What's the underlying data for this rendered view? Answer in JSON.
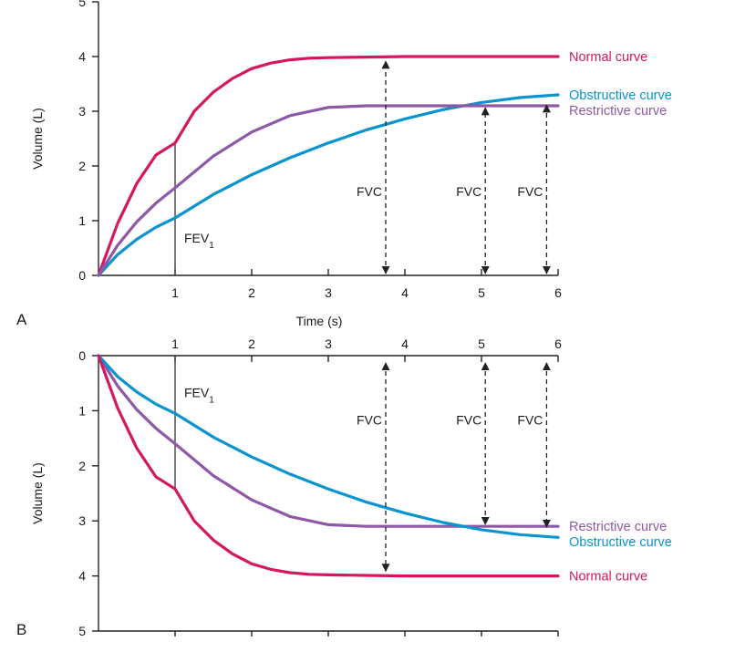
{
  "chart_data": [
    {
      "panel": "A",
      "type": "line",
      "xlabel": "Time (s)",
      "ylabel": "Volume (L)",
      "xlim": [
        0,
        6
      ],
      "ylim": [
        0,
        5
      ],
      "x_ticks": [
        "1",
        "2",
        "3",
        "4",
        "5",
        "6"
      ],
      "y_ticks": [
        "0",
        "1",
        "2",
        "3",
        "4",
        "5"
      ],
      "y_inverted": false,
      "x_axis_position": "bottom",
      "series": [
        {
          "name": "Normal curve",
          "color": "#d6175f",
          "x": [
            0,
            0.25,
            0.5,
            0.75,
            1,
            1.25,
            1.5,
            1.75,
            2,
            2.25,
            2.5,
            2.75,
            3,
            3.5,
            4,
            5,
            6
          ],
          "y": [
            0,
            0.95,
            1.68,
            2.2,
            2.42,
            3.0,
            3.35,
            3.6,
            3.78,
            3.88,
            3.94,
            3.97,
            3.98,
            3.99,
            4.0,
            4.0,
            4.0
          ]
        },
        {
          "name": "Obstructive curve",
          "color": "#0a94cf",
          "x": [
            0,
            0.25,
            0.5,
            0.75,
            1,
            1.5,
            2,
            2.5,
            3,
            3.5,
            4,
            4.5,
            5,
            5.5,
            6
          ],
          "y": [
            0,
            0.38,
            0.66,
            0.88,
            1.05,
            1.48,
            1.84,
            2.15,
            2.42,
            2.66,
            2.86,
            3.03,
            3.16,
            3.25,
            3.3
          ]
        },
        {
          "name": "Restrictive curve",
          "color": "#8e58a6",
          "x": [
            0,
            0.25,
            0.5,
            0.75,
            1,
            1.5,
            2,
            2.5,
            3,
            3.5,
            4,
            5,
            6
          ],
          "y": [
            0,
            0.55,
            0.98,
            1.32,
            1.6,
            2.18,
            2.62,
            2.92,
            3.07,
            3.1,
            3.1,
            3.1,
            3.1
          ]
        }
      ],
      "fev1": {
        "label": "FEV",
        "subscript": "1",
        "x": 1,
        "y_top": 2.42
      },
      "fvc_markers": [
        {
          "label": "FVC",
          "x": 3.75,
          "y_top": 3.98
        },
        {
          "label": "FVC",
          "x": 5.05,
          "y_top": 3.13
        },
        {
          "label": "FVC",
          "x": 5.85,
          "y_top": 3.18
        }
      ],
      "panel_letter": "A"
    },
    {
      "panel": "B",
      "type": "line",
      "xlabel": "",
      "ylabel": "Volume (L)",
      "xlim": [
        0,
        6
      ],
      "ylim": [
        0,
        5
      ],
      "x_ticks": [
        "1",
        "2",
        "3",
        "4",
        "5",
        "6"
      ],
      "y_ticks": [
        "0",
        "1",
        "2",
        "3",
        "4",
        "5"
      ],
      "y_inverted": true,
      "x_axis_position": "top",
      "series": [
        {
          "name": "Restrictive curve",
          "color": "#8e58a6",
          "x": [
            0,
            0.25,
            0.5,
            0.75,
            1,
            1.5,
            2,
            2.5,
            3,
            3.5,
            4,
            5,
            6
          ],
          "y": [
            0,
            0.55,
            0.98,
            1.32,
            1.6,
            2.18,
            2.62,
            2.92,
            3.07,
            3.1,
            3.1,
            3.1,
            3.1
          ]
        },
        {
          "name": "Obstructive curve",
          "color": "#0a94cf",
          "x": [
            0,
            0.25,
            0.5,
            0.75,
            1,
            1.5,
            2,
            2.5,
            3,
            3.5,
            4,
            4.5,
            5,
            5.5,
            6
          ],
          "y": [
            0,
            0.38,
            0.66,
            0.88,
            1.05,
            1.48,
            1.84,
            2.15,
            2.42,
            2.66,
            2.86,
            3.03,
            3.16,
            3.25,
            3.3
          ]
        },
        {
          "name": "Normal curve",
          "color": "#d6175f",
          "x": [
            0,
            0.25,
            0.5,
            0.75,
            1,
            1.25,
            1.5,
            1.75,
            2,
            2.25,
            2.5,
            2.75,
            3,
            3.5,
            4,
            5,
            6
          ],
          "y": [
            0,
            0.95,
            1.68,
            2.2,
            2.42,
            3.0,
            3.35,
            3.6,
            3.78,
            3.88,
            3.94,
            3.97,
            3.98,
            3.99,
            4.0,
            4.0,
            4.0
          ]
        }
      ],
      "fev1": {
        "label": "FEV",
        "subscript": "1",
        "x": 1,
        "y_top": 2.42
      },
      "fvc_markers": [
        {
          "label": "FVC",
          "x": 3.75,
          "y_top": 3.98
        },
        {
          "label": "FVC",
          "x": 5.05,
          "y_top": 3.13
        },
        {
          "label": "FVC",
          "x": 5.85,
          "y_top": 3.18
        }
      ],
      "panel_letter": "B"
    }
  ]
}
